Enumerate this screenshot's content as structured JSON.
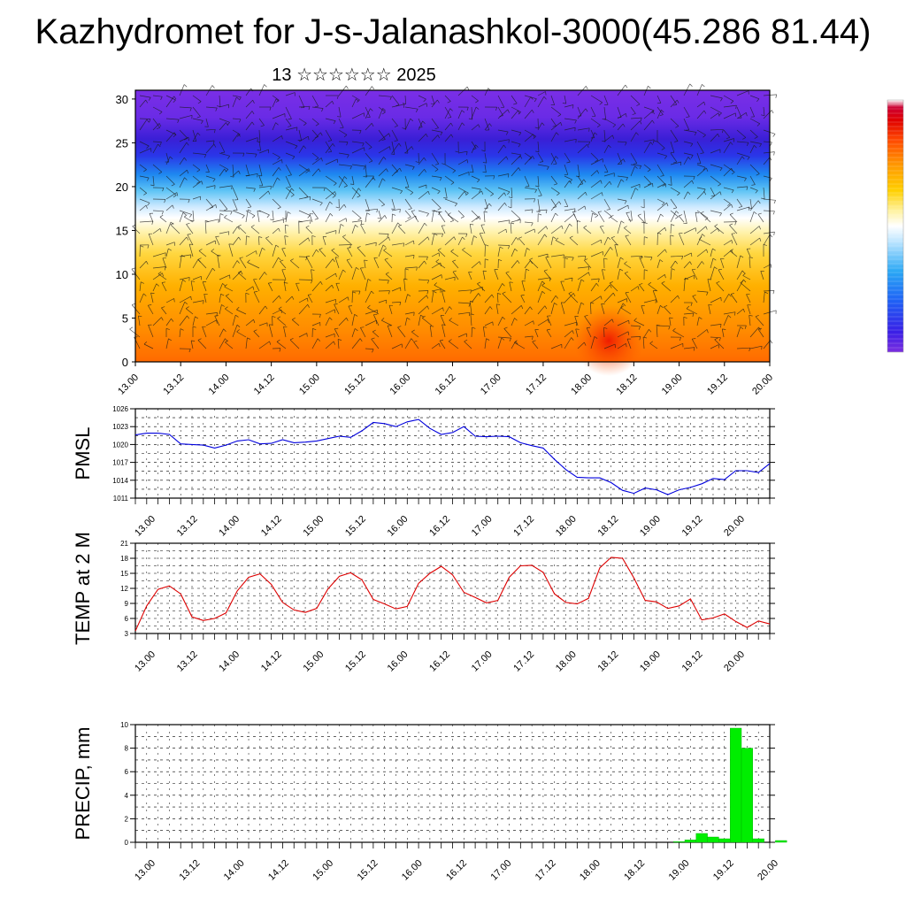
{
  "title": "Kazhydromet for J-s-Jalanashkol-3000(45.286 81.44)",
  "subtitle": "13 ☆☆☆☆☆☆ 2025",
  "colors": {
    "pmsl": "#0000dd",
    "temp": "#dd0000",
    "precip": "#00ee00",
    "precip_edge": "#00aa00"
  },
  "chart_data": [
    {
      "type": "heatmap",
      "title": "",
      "xlabel": "",
      "ylabel": "",
      "x_tick_labels": [
        "13.00",
        "13.12",
        "14.00",
        "14.12",
        "15.00",
        "15.12",
        "16.00",
        "16.12",
        "17.00",
        "17.12",
        "18.00",
        "18.12",
        "19.00",
        "19.12",
        "20.00"
      ],
      "y_ticks": [
        0,
        5,
        10,
        15,
        20,
        25,
        30
      ],
      "ylim": [
        0,
        31
      ],
      "overlay": "wind barbs",
      "colormap": "blue-purple top, cyan/white middle, yellow-orange-red bottom",
      "colorbar_stops": [
        "#7b2ee0",
        "#3a1fe6",
        "#1f5ff5",
        "#2aa8f5",
        "#bfe6ff",
        "#ffffff",
        "#fff2a0",
        "#ffd000",
        "#ff9a00",
        "#ff4a00",
        "#e00000",
        "#cc0033",
        "#ffffff"
      ]
    },
    {
      "type": "line",
      "title": "",
      "xlabel": "",
      "ylabel": "PMSL",
      "x_tick_labels": [
        "13.00",
        "13.12",
        "14.00",
        "14.12",
        "15.00",
        "15.12",
        "16.00",
        "16.12",
        "17.00",
        "17.12",
        "18.00",
        "18.12",
        "19.00",
        "19.12",
        "20.00"
      ],
      "y_ticks": [
        1011,
        1014,
        1017,
        1020,
        1023,
        1026
      ],
      "ylim": [
        1011,
        1026
      ],
      "series": [
        {
          "values": [
            1021.6,
            1021.9,
            1021.9,
            1021.7,
            1020.1,
            1020.0,
            1019.9,
            1019.4,
            1019.9,
            1020.6,
            1020.8,
            1020.1,
            1020.2,
            1020.8,
            1020.3,
            1020.4,
            1020.6,
            1021.0,
            1021.4,
            1021.2,
            1022.3,
            1023.7,
            1023.5,
            1023.0,
            1023.8,
            1024.2,
            1022.7,
            1021.7,
            1022.0,
            1023.0,
            1021.4,
            1021.3,
            1021.4,
            1021.3,
            1020.3,
            1019.8,
            1019.4,
            1017.5,
            1015.8,
            1014.5,
            1014.4,
            1014.4,
            1013.6,
            1012.3,
            1011.8,
            1012.7,
            1012.4,
            1011.6,
            1012.4,
            1012.8,
            1013.4,
            1014.3,
            1014.1,
            1015.6,
            1015.6,
            1015.3,
            1016.8
          ]
        }
      ]
    },
    {
      "type": "line",
      "title": "",
      "xlabel": "",
      "ylabel": "TEMP at 2 M",
      "x_tick_labels": [
        "13.00",
        "13.12",
        "14.00",
        "14.12",
        "15.00",
        "15.12",
        "16.00",
        "16.12",
        "17.00",
        "17.12",
        "18.00",
        "18.12",
        "19.00",
        "19.12",
        "20.00"
      ],
      "y_ticks": [
        3,
        6,
        9,
        12,
        15,
        18,
        21
      ],
      "ylim": [
        3,
        21
      ],
      "series": [
        {
          "values": [
            3.5,
            8.5,
            11.8,
            12.5,
            10.9,
            6.3,
            5.6,
            6.0,
            7.1,
            11.5,
            14.2,
            14.9,
            12.8,
            9.2,
            7.7,
            7.2,
            8.0,
            11.9,
            14.4,
            15.1,
            13.7,
            9.8,
            8.9,
            7.9,
            8.4,
            13.0,
            15.0,
            16.4,
            14.7,
            11.2,
            10.2,
            9.1,
            9.6,
            14.2,
            16.5,
            16.6,
            15.2,
            10.9,
            9.2,
            8.9,
            10.0,
            16.1,
            18.2,
            18.0,
            14.1,
            9.6,
            9.3,
            8.0,
            8.5,
            9.9,
            5.7,
            6.1,
            6.9,
            5.4,
            4.2,
            5.5,
            4.9
          ]
        }
      ]
    },
    {
      "type": "bar",
      "title": "",
      "xlabel": "",
      "ylabel": "PRECIP, mm",
      "x_tick_labels": [
        "13.00",
        "13.12",
        "14.00",
        "14.12",
        "15.00",
        "15.12",
        "16.00",
        "16.12",
        "17.00",
        "17.12",
        "18.00",
        "18.12",
        "19.00",
        "19.12",
        "20.00"
      ],
      "y_ticks": [
        0,
        2,
        4,
        6,
        8,
        10
      ],
      "ylim": [
        0,
        10
      ],
      "series": [
        {
          "values": [
            0,
            0,
            0,
            0,
            0,
            0,
            0,
            0,
            0,
            0,
            0,
            0,
            0,
            0,
            0,
            0,
            0,
            0,
            0,
            0,
            0,
            0,
            0,
            0,
            0,
            0,
            0,
            0,
            0,
            0,
            0,
            0,
            0,
            0,
            0,
            0,
            0,
            0,
            0,
            0,
            0,
            0,
            0,
            0,
            0,
            0,
            0,
            0,
            0.05,
            0.2,
            0.75,
            0.45,
            0.3,
            9.7,
            8.0,
            0.3,
            0.0,
            0.15
          ]
        }
      ]
    }
  ]
}
